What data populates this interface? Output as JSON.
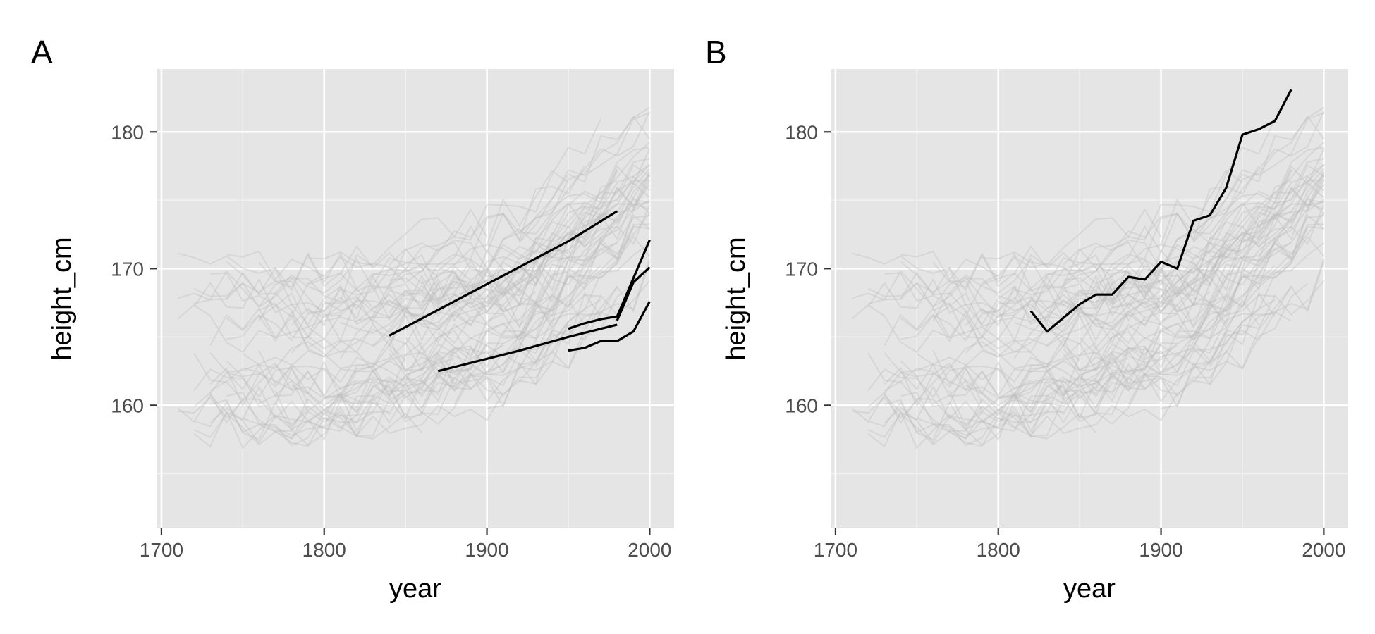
{
  "colors": {
    "panel_background": "#e5e5e5",
    "grid_major": "#ffffff",
    "grid_minor": "#f2f2f2",
    "background_lines": "#bdbdbd",
    "highlight_lines": "#000000",
    "tick_text": "#4d4d4d"
  },
  "chart_data": [
    {
      "type": "line",
      "panel_tag": "A",
      "xlabel": "year",
      "ylabel": "height_cm",
      "xlim": [
        1697,
        2015
      ],
      "ylim": [
        151,
        184.6
      ],
      "x_ticks": [
        1700,
        1800,
        1900,
        2000
      ],
      "y_ticks": [
        160,
        170,
        180
      ],
      "x_tick_labels": [
        "1700",
        "1800",
        "1900",
        "2000"
      ],
      "y_tick_labels": [
        "160",
        "170",
        "180"
      ],
      "grid": true,
      "background": "many faint grey country-level series (shared across panels)",
      "highlight_series": [
        {
          "x": [
            1840,
            1950,
            1980
          ],
          "y": [
            165.1,
            172.0,
            174.2
          ]
        },
        {
          "x": [
            1870,
            1920,
            1950,
            1980
          ],
          "y": [
            162.5,
            164.0,
            165.0,
            165.9
          ]
        },
        {
          "x": [
            1950,
            1960,
            1970,
            1980,
            1990,
            2000
          ],
          "y": [
            165.6,
            166.0,
            166.3,
            166.5,
            169.3,
            172.1
          ]
        },
        {
          "x": [
            1950,
            1960,
            1970,
            1980,
            1990,
            2000
          ],
          "y": [
            164.0,
            164.2,
            164.7,
            164.7,
            165.4,
            167.6
          ]
        },
        {
          "x": [
            1980,
            1990,
            2000
          ],
          "y": [
            166.2,
            169.0,
            170.1
          ]
        }
      ]
    },
    {
      "type": "line",
      "panel_tag": "B",
      "xlabel": "year",
      "ylabel": "height_cm",
      "xlim": [
        1697,
        2015
      ],
      "ylim": [
        151,
        184.6
      ],
      "x_ticks": [
        1700,
        1800,
        1900,
        2000
      ],
      "y_ticks": [
        160,
        170,
        180
      ],
      "x_tick_labels": [
        "1700",
        "1800",
        "1900",
        "2000"
      ],
      "y_tick_labels": [
        "160",
        "170",
        "180"
      ],
      "grid": true,
      "background": "many faint grey country-level series (shared across panels)",
      "highlight_series": [
        {
          "x": [
            1820,
            1830,
            1840,
            1850,
            1860,
            1870,
            1880,
            1890,
            1900,
            1910,
            1920,
            1930,
            1940,
            1950,
            1960,
            1970,
            1980
          ],
          "y": [
            166.9,
            165.4,
            166.4,
            167.4,
            168.1,
            168.1,
            169.4,
            169.2,
            170.5,
            170.0,
            173.5,
            173.9,
            175.9,
            179.8,
            180.2,
            180.8,
            183.1
          ]
        }
      ]
    }
  ]
}
